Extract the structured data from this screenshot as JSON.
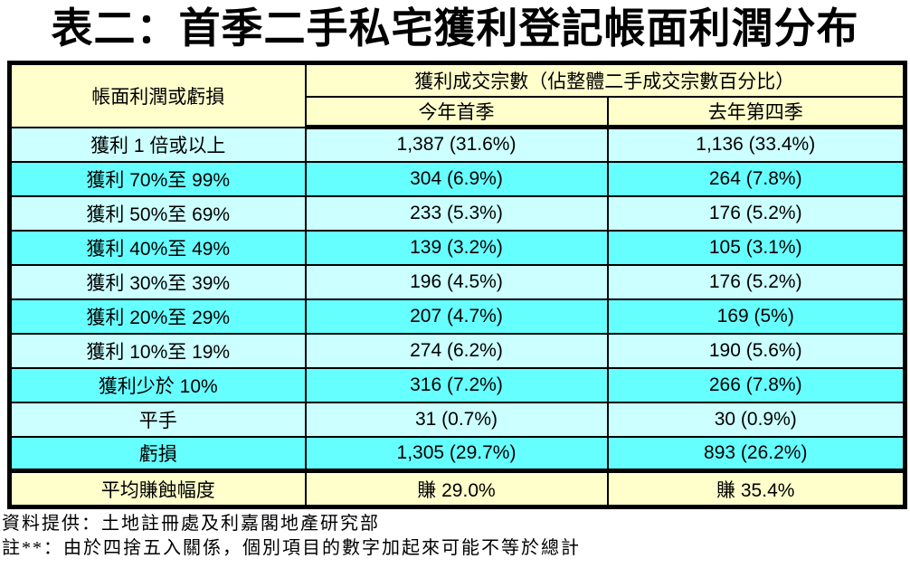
{
  "title": "表二：首季二手私宅獲利登記帳面利潤分布",
  "table": {
    "header": {
      "row_label": "帳面利潤或虧損",
      "group_label": "獲利成交宗數（佔整體二手成交宗數百分比）",
      "sub_columns": [
        "今年首季",
        "去年第四季"
      ]
    },
    "rows": [
      {
        "label": "獲利 1 倍或以上",
        "this_q": "1,387 (31.6%)",
        "last_q": "1,136 (33.4%)"
      },
      {
        "label": "獲利 70%至 99%",
        "this_q": "304 (6.9%)",
        "last_q": "264 (7.8%)"
      },
      {
        "label": "獲利 50%至 69%",
        "this_q": "233 (5.3%)",
        "last_q": "176 (5.2%)"
      },
      {
        "label": "獲利 40%至 49%",
        "this_q": "139 (3.2%)",
        "last_q": "105 (3.1%)"
      },
      {
        "label": "獲利 30%至 39%",
        "this_q": "196 (4.5%)",
        "last_q": "176 (5.2%)"
      },
      {
        "label": "獲利 20%至 29%",
        "this_q": "207 (4.7%)",
        "last_q": "169 (5%)"
      },
      {
        "label": "獲利 10%至 19%",
        "this_q": "274 (6.2%)",
        "last_q": "190 (5.6%)"
      },
      {
        "label": "獲利少於 10%",
        "this_q": "316 (7.2%)",
        "last_q": "266 (7.8%)"
      },
      {
        "label": "平手",
        "this_q": "31 (0.7%)",
        "last_q": "30 (0.9%)"
      },
      {
        "label": "虧損",
        "this_q": "1,305 (29.7%)",
        "last_q": "893 (26.2%)"
      }
    ],
    "summary": {
      "label": "平均賺蝕幅度",
      "this_q": "賺 29.0%",
      "last_q": "賺 35.4%"
    }
  },
  "footnotes": {
    "source": "資料提供：土地註冊處及利嘉閣地產研究部",
    "note": "註**：由於四捨五入關係，個別項目的數字加起來可能不等於總計"
  },
  "colors": {
    "row_light": "#CCFFFF",
    "row_dark": "#66FFFF",
    "header_bg": "#FFFFCC",
    "border": "#000000"
  }
}
